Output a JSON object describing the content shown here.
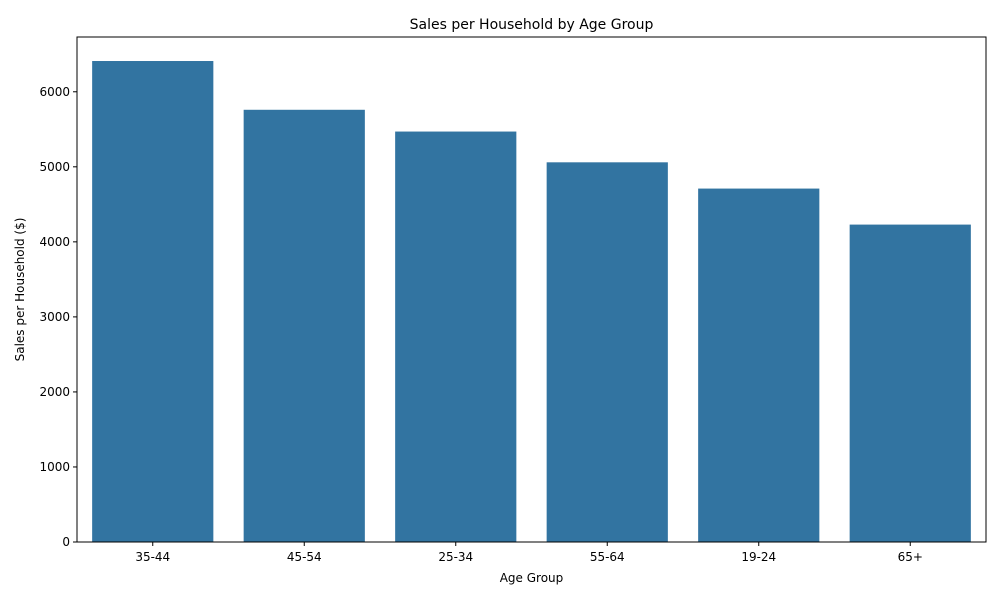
{
  "chart_data": {
    "type": "bar",
    "title": "Sales per Household by Age Group",
    "xlabel": "Age Group",
    "ylabel": "Sales per Household ($)",
    "categories": [
      "35-44",
      "45-54",
      "25-34",
      "55-64",
      "19-24",
      "65+"
    ],
    "values": [
      6410,
      5760,
      5470,
      5060,
      4710,
      4230
    ],
    "ylim": [
      0,
      6730
    ],
    "yticks": [
      0,
      1000,
      2000,
      3000,
      4000,
      5000,
      6000
    ],
    "ytick_labels": [
      "0",
      "1000",
      "2000",
      "3000",
      "4000",
      "5000",
      "6000"
    ],
    "grid": false,
    "bar_color": "#3274a1"
  }
}
